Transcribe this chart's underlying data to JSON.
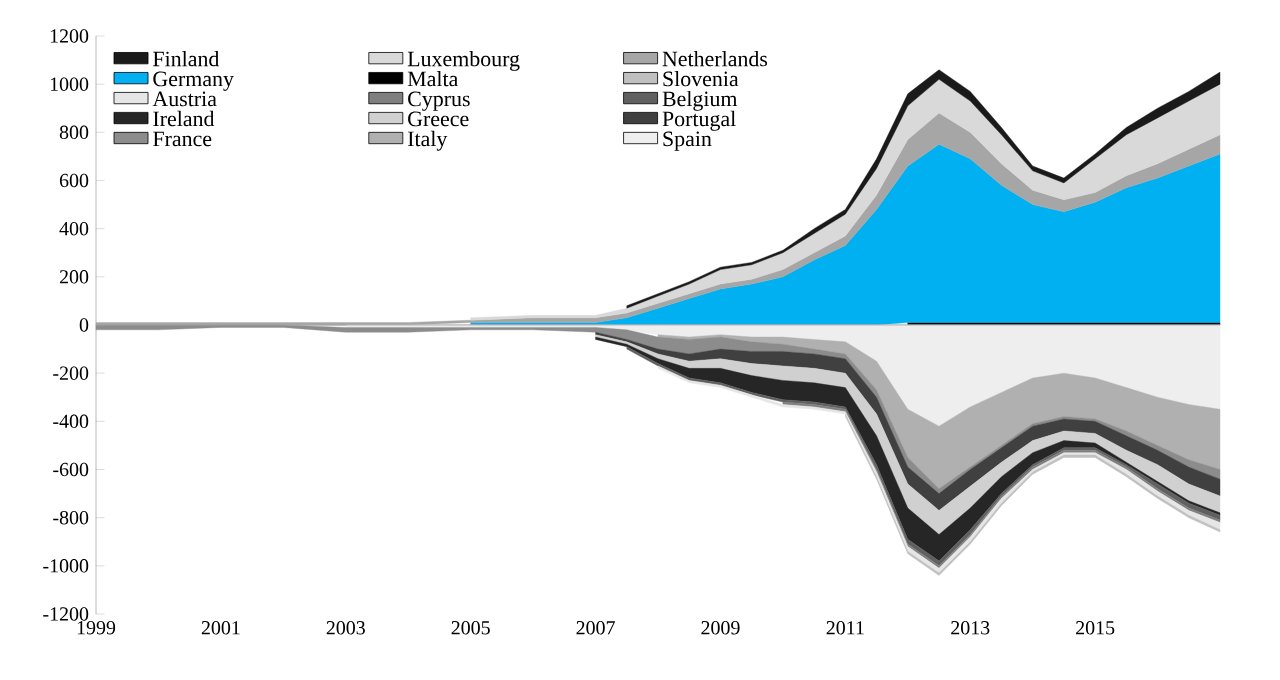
{
  "chart_data": [
    {
      "type": "area",
      "stacked": true,
      "legend": "top left",
      "x": [
        1999,
        2000,
        2001,
        2002,
        2003,
        2004,
        2005,
        2006,
        2007,
        2007.5,
        2008,
        2008.5,
        2009,
        2009.5,
        2010,
        2010.5,
        2011,
        2011.5,
        2012,
        2012.5,
        2013,
        2013.5,
        2014,
        2014.5,
        2015,
        2015.5,
        2016,
        2016.5,
        2017
      ],
      "xlim": [
        1999,
        2017
      ],
      "xticks": [
        1999,
        2001,
        2003,
        2005,
        2007,
        2009,
        2011,
        2013,
        2015
      ],
      "ylim": [
        -1200,
        1200
      ],
      "yticks": [
        -1200,
        -1000,
        -800,
        -600,
        -400,
        -200,
        0,
        200,
        400,
        600,
        800,
        1000,
        1200
      ],
      "series": [
        {
          "name": "Malta",
          "color": "#000000",
          "values": [
            null,
            null,
            null,
            null,
            null,
            null,
            null,
            null,
            null,
            null,
            null,
            null,
            null,
            null,
            null,
            null,
            null,
            null,
            10,
            10,
            10,
            10,
            10,
            10,
            10,
            10,
            10,
            10,
            10
          ]
        },
        {
          "name": "Germany",
          "color": "#00b0f0",
          "values": [
            null,
            null,
            null,
            null,
            null,
            null,
            10,
            10,
            10,
            30,
            70,
            110,
            150,
            170,
            200,
            270,
            330,
            480,
            650,
            740,
            680,
            570,
            490,
            460,
            500,
            560,
            600,
            650,
            700
          ]
        },
        {
          "name": "Netherlands",
          "color": "#a6a6a6",
          "values": [
            10,
            10,
            10,
            10,
            10,
            10,
            10,
            20,
            20,
            20,
            20,
            20,
            20,
            20,
            30,
            30,
            40,
            60,
            110,
            130,
            110,
            90,
            60,
            50,
            40,
            50,
            60,
            70,
            80
          ]
        },
        {
          "name": "Luxembourg",
          "color": "#d9d9d9",
          "values": [
            null,
            null,
            null,
            null,
            null,
            null,
            10,
            10,
            10,
            20,
            30,
            40,
            60,
            60,
            70,
            80,
            90,
            110,
            140,
            140,
            130,
            120,
            80,
            70,
            140,
            170,
            190,
            200,
            210
          ]
        },
        {
          "name": "Finland",
          "color": "#1a1a1a",
          "values": [
            null,
            null,
            null,
            null,
            null,
            null,
            null,
            null,
            null,
            10,
            10,
            10,
            10,
            10,
            10,
            20,
            20,
            40,
            50,
            40,
            40,
            30,
            20,
            20,
            20,
            30,
            40,
            40,
            50
          ]
        }
      ]
    },
    {
      "type": "area",
      "stacked": true,
      "legend": "top left",
      "tick_labels": false,
      "x": [
        1999,
        2000,
        2001,
        2002,
        2003,
        2004,
        2005,
        2006,
        2007,
        2007.5,
        2008,
        2008.5,
        2009,
        2009.5,
        2010,
        2010.5,
        2011,
        2011.5,
        2012,
        2012.5,
        2013,
        2013.5,
        2014,
        2014.5,
        2015,
        2015.5,
        2016,
        2016.5,
        2017
      ],
      "xlim": [
        1999,
        2017
      ],
      "xticks": [
        1999,
        2001,
        2003,
        2005,
        2007,
        2009,
        2011,
        2013,
        2015
      ],
      "ylim": [
        -1200,
        1200
      ],
      "yticks": [
        -1200,
        -1000,
        -800,
        -600,
        -400,
        -200,
        0,
        200,
        400,
        600,
        800,
        1000,
        1200
      ],
      "series": [
        {
          "name": "Spain",
          "color": "#eeeeee",
          "values": [
            null,
            null,
            null,
            null,
            -10,
            -10,
            -10,
            -10,
            -10,
            -20,
            -40,
            -50,
            -40,
            -50,
            -50,
            -60,
            -70,
            -150,
            -350,
            -420,
            -340,
            -280,
            -220,
            -200,
            -220,
            -260,
            -300,
            -330,
            -350
          ]
        },
        {
          "name": "Italy",
          "color": "#b0b0b0",
          "values": [
            null,
            null,
            null,
            null,
            null,
            null,
            null,
            null,
            null,
            null,
            -10,
            -10,
            -10,
            -20,
            -30,
            -40,
            -50,
            -120,
            -200,
            -260,
            -250,
            -220,
            -190,
            -180,
            -170,
            -180,
            -200,
            -230,
            -250
          ]
        },
        {
          "name": "France",
          "color": "#8c8c8c",
          "values": [
            -20,
            -20,
            -10,
            -10,
            -20,
            -20,
            -10,
            -10,
            -20,
            -40,
            -50,
            -60,
            -50,
            -40,
            -30,
            -20,
            -20,
            -30,
            -40,
            -20,
            -10,
            -10,
            -10,
            -10,
            -10,
            -20,
            -20,
            -30,
            -40
          ]
        },
        {
          "name": "Portugal",
          "color": "#404040",
          "values": [
            null,
            null,
            null,
            null,
            null,
            null,
            null,
            null,
            -10,
            -10,
            -20,
            -30,
            -40,
            -50,
            -60,
            -60,
            -60,
            -70,
            -70,
            -70,
            -70,
            -60,
            -60,
            -50,
            -50,
            -60,
            -60,
            -70,
            -70
          ]
        },
        {
          "name": "Greece",
          "color": "#d0d0d0",
          "values": [
            null,
            null,
            null,
            null,
            null,
            null,
            null,
            null,
            -10,
            -10,
            -20,
            -30,
            -40,
            -50,
            -60,
            -60,
            -60,
            -90,
            -100,
            -100,
            -90,
            -60,
            -50,
            -40,
            -40,
            -50,
            -70,
            -70,
            -70
          ]
        },
        {
          "name": "Ireland",
          "color": "#262626",
          "values": [
            null,
            null,
            null,
            null,
            null,
            null,
            null,
            null,
            -10,
            -10,
            -20,
            -40,
            -60,
            -70,
            -80,
            -80,
            -80,
            -120,
            -130,
            -110,
            -90,
            -70,
            -50,
            -30,
            -20,
            -10,
            -10,
            -10,
            -10
          ]
        },
        {
          "name": "Belgium",
          "color": "#606060",
          "values": [
            null,
            null,
            null,
            null,
            null,
            null,
            null,
            null,
            null,
            -10,
            -10,
            -10,
            -10,
            -10,
            -10,
            -10,
            -10,
            -20,
            -20,
            -20,
            -20,
            -10,
            -10,
            -10,
            -10,
            -10,
            -20,
            -20,
            -20
          ]
        },
        {
          "name": "Cyprus",
          "color": "#7f7f7f",
          "values": [
            null,
            null,
            null,
            null,
            null,
            null,
            null,
            null,
            null,
            null,
            null,
            null,
            null,
            null,
            -10,
            -10,
            -10,
            -10,
            -10,
            -10,
            -10,
            -10,
            -10,
            -10,
            -10,
            -10,
            -10,
            -10,
            -10
          ]
        },
        {
          "name": "Austria",
          "color": "#e6e6e6",
          "values": [
            null,
            null,
            null,
            null,
            null,
            null,
            null,
            null,
            null,
            null,
            -10,
            -10,
            -10,
            -10,
            -10,
            -10,
            -10,
            -20,
            -20,
            -20,
            -20,
            -20,
            -10,
            -10,
            -10,
            -20,
            -20,
            -20,
            -30
          ]
        },
        {
          "name": "Slovenia",
          "color": "#c0c0c0",
          "values": [
            null,
            null,
            null,
            null,
            null,
            null,
            null,
            null,
            null,
            null,
            null,
            null,
            null,
            null,
            null,
            null,
            -10,
            -10,
            -10,
            -10,
            -10,
            -10,
            -10,
            -10,
            -10,
            -10,
            -10,
            -10,
            -10
          ]
        }
      ]
    }
  ]
}
